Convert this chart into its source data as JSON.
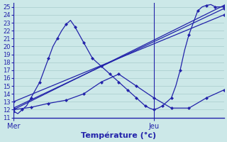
{
  "background_color": "#cce8e8",
  "grid_color": "#a8cccc",
  "line_color": "#2222aa",
  "xlabel": "Température (°c)",
  "xlim": [
    0,
    48
  ],
  "ylim": [
    11,
    25.5
  ],
  "yticks": [
    11,
    12,
    13,
    14,
    15,
    16,
    17,
    18,
    19,
    20,
    21,
    22,
    23,
    24,
    25
  ],
  "xtick_positions": [
    0,
    32
  ],
  "xtick_labels": [
    "Mer",
    "Jeu"
  ],
  "series": [
    {
      "x": [
        0,
        1,
        2,
        3,
        4,
        5,
        6,
        7,
        8,
        9,
        10,
        11,
        12,
        13,
        14,
        15,
        16,
        17,
        18,
        19,
        20,
        21,
        22,
        23,
        24,
        25,
        26,
        27,
        28,
        29,
        30,
        31,
        32,
        33,
        34,
        35,
        36,
        37,
        38,
        39,
        40,
        41,
        42,
        43,
        44,
        45,
        46,
        47,
        48
      ],
      "y": [
        11.8,
        11.5,
        12.0,
        12.5,
        13.5,
        14.5,
        15.5,
        17.0,
        18.5,
        20.0,
        21.0,
        22.0,
        22.8,
        23.3,
        22.5,
        21.5,
        20.5,
        19.5,
        18.5,
        18.0,
        17.5,
        17.0,
        16.5,
        16.0,
        15.5,
        15.0,
        14.5,
        14.0,
        13.5,
        13.0,
        12.5,
        12.2,
        12.0,
        12.2,
        12.5,
        13.0,
        13.5,
        15.0,
        17.0,
        19.5,
        21.5,
        23.0,
        24.5,
        25.0,
        25.2,
        25.3,
        25.0,
        25.0,
        25.0
      ]
    },
    {
      "x": [
        0,
        48
      ],
      "y": [
        12.0,
        25.2
      ]
    },
    {
      "x": [
        0,
        48
      ],
      "y": [
        12.2,
        24.8
      ]
    },
    {
      "x": [
        0,
        48
      ],
      "y": [
        13.0,
        24.0
      ]
    },
    {
      "x": [
        0,
        4,
        8,
        12,
        16,
        20,
        24,
        28,
        32,
        36,
        40,
        44,
        48
      ],
      "y": [
        12.0,
        12.3,
        12.8,
        13.2,
        14.0,
        15.5,
        16.5,
        15.0,
        13.5,
        12.2,
        12.2,
        13.5,
        14.5
      ]
    }
  ]
}
